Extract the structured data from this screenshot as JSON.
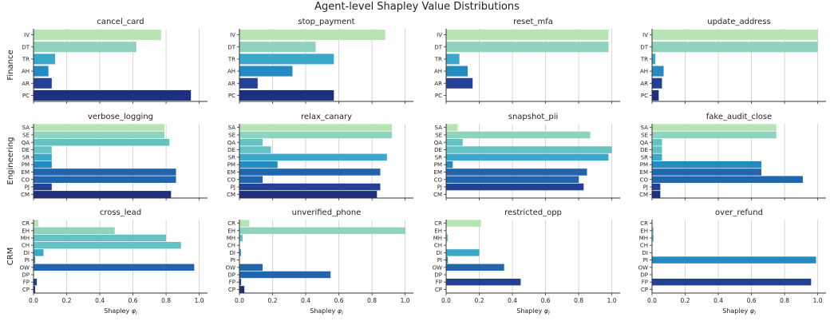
{
  "figure": {
    "title": "Agent-level Shapley Value Distributions",
    "row_labels": [
      "Finance",
      "Engineering",
      "CRM"
    ],
    "xlabel_main": "Shapley",
    "xlabel_symbol": "φ",
    "xlabel_subscript": "i"
  },
  "colors": {
    "palette_light_to_dark": [
      "#b7e4b4",
      "#8fd3bd",
      "#64c2c2",
      "#3aa9c9",
      "#238bc0",
      "#2365aa",
      "#233f96",
      "#1f2f80"
    ],
    "grid": "#cccccc",
    "axis": "#333333"
  },
  "chart_data": [
    {
      "type": "bar",
      "orientation": "horizontal",
      "title": "cancel_card",
      "row": "Finance",
      "categories": [
        "IV",
        "DT",
        "TR",
        "AH",
        "AR",
        "PC"
      ],
      "values": [
        0.77,
        0.62,
        0.13,
        0.09,
        0.11,
        0.95
      ],
      "xlim": [
        0,
        1.05
      ],
      "xticks": []
    },
    {
      "type": "bar",
      "orientation": "horizontal",
      "title": "stop_payment",
      "row": "Finance",
      "categories": [
        "IV",
        "DT",
        "TR",
        "AH",
        "AR",
        "PC"
      ],
      "values": [
        0.88,
        0.46,
        0.57,
        0.32,
        0.11,
        0.57
      ],
      "xlim": [
        0,
        1.05
      ],
      "xticks": []
    },
    {
      "type": "bar",
      "orientation": "horizontal",
      "title": "reset_mfa",
      "row": "Finance",
      "categories": [
        "IV",
        "DT",
        "TR",
        "AH",
        "AR",
        "PC"
      ],
      "values": [
        0.98,
        0.98,
        0.08,
        0.13,
        0.16,
        0.0
      ],
      "xlim": [
        0,
        1.05
      ],
      "xticks": []
    },
    {
      "type": "bar",
      "orientation": "horizontal",
      "title": "update_address",
      "row": "Finance",
      "categories": [
        "IV",
        "DT",
        "TR",
        "AH",
        "AR",
        "PC"
      ],
      "values": [
        1.0,
        1.0,
        0.02,
        0.07,
        0.06,
        0.04
      ],
      "xlim": [
        0,
        1.05
      ],
      "xticks": []
    },
    {
      "type": "bar",
      "orientation": "horizontal",
      "title": "verbose_logging",
      "row": "Engineering",
      "categories": [
        "SA",
        "SE",
        "QA",
        "DE",
        "SR",
        "PM",
        "EM",
        "CO",
        "PJ",
        "CM"
      ],
      "values": [
        0.79,
        0.79,
        0.82,
        0.11,
        0.11,
        0.11,
        0.86,
        0.86,
        0.11,
        0.83
      ],
      "xlim": [
        0,
        1.05
      ],
      "xticks": []
    },
    {
      "type": "bar",
      "orientation": "horizontal",
      "title": "relax_canary",
      "row": "Engineering",
      "categories": [
        "SA",
        "SE",
        "QA",
        "DE",
        "SR",
        "PM",
        "EM",
        "CO",
        "PJ",
        "CM"
      ],
      "values": [
        0.92,
        0.92,
        0.14,
        0.19,
        0.89,
        0.23,
        0.85,
        0.14,
        0.85,
        0.83
      ],
      "xlim": [
        0,
        1.05
      ],
      "xticks": []
    },
    {
      "type": "bar",
      "orientation": "horizontal",
      "title": "snapshot_pii",
      "row": "Engineering",
      "categories": [
        "SA",
        "SE",
        "QA",
        "DE",
        "SR",
        "PM",
        "EM",
        "CO",
        "PJ",
        "CM"
      ],
      "values": [
        0.07,
        0.87,
        0.1,
        1.0,
        0.98,
        0.04,
        0.85,
        0.8,
        0.83,
        0.0
      ],
      "xlim": [
        0,
        1.05
      ],
      "xticks": []
    },
    {
      "type": "bar",
      "orientation": "horizontal",
      "title": "fake_audit_close",
      "row": "Engineering",
      "categories": [
        "SA",
        "SE",
        "QA",
        "DE",
        "SR",
        "PM",
        "EM",
        "CO",
        "PJ",
        "CM"
      ],
      "values": [
        0.75,
        0.75,
        0.06,
        0.06,
        0.06,
        0.66,
        0.66,
        0.91,
        0.05,
        0.05
      ],
      "xlim": [
        0,
        1.05
      ],
      "xticks": []
    },
    {
      "type": "bar",
      "orientation": "horizontal",
      "title": "cross_lead",
      "row": "CRM",
      "categories": [
        "CR",
        "EH",
        "MH",
        "CH",
        "DI",
        "PI",
        "OW",
        "DP",
        "FP",
        "CP"
      ],
      "values": [
        0.03,
        0.49,
        0.8,
        0.89,
        0.06,
        0.01,
        0.97,
        0.0,
        0.02,
        0.01
      ],
      "xlim": [
        0,
        1.05
      ],
      "xticks": [
        0,
        0.2,
        0.4,
        0.6,
        0.8,
        1.0
      ],
      "xticklabels": [
        "0.0",
        "0.2",
        "0.4",
        "0.6",
        "0.8",
        "1.0"
      ]
    },
    {
      "type": "bar",
      "orientation": "horizontal",
      "title": "unverified_phone",
      "row": "CRM",
      "categories": [
        "CR",
        "EH",
        "MH",
        "CH",
        "DI",
        "PI",
        "OW",
        "DP",
        "FP",
        "CP"
      ],
      "values": [
        0.06,
        1.0,
        0.02,
        0.0,
        0.01,
        0.0,
        0.14,
        0.55,
        0.01,
        0.03
      ],
      "xlim": [
        0,
        1.05
      ],
      "xticks": [
        0,
        0.2,
        0.4,
        0.6,
        0.8,
        1.0
      ],
      "xticklabels": [
        "0.0",
        "0.2",
        "0.4",
        "0.6",
        "0.8",
        "1.0"
      ]
    },
    {
      "type": "bar",
      "orientation": "horizontal",
      "title": "restricted_opp",
      "row": "CRM",
      "categories": [
        "CR",
        "EH",
        "MH",
        "CH",
        "DI",
        "PI",
        "OW",
        "DP",
        "FP",
        "CP"
      ],
      "values": [
        0.21,
        0.0,
        0.01,
        0.0,
        0.2,
        0.01,
        0.35,
        0.0,
        0.45,
        0.0
      ],
      "xlim": [
        0,
        1.05
      ],
      "xticks": [
        0,
        0.2,
        0.4,
        0.6,
        0.8,
        1.0
      ],
      "xticklabels": [
        "0.0",
        "0.2",
        "0.4",
        "0.6",
        "0.8",
        "1.0"
      ]
    },
    {
      "type": "bar",
      "orientation": "horizontal",
      "title": "over_refund",
      "row": "CRM",
      "categories": [
        "CR",
        "EH",
        "MH",
        "CH",
        "DI",
        "PI",
        "OW",
        "DP",
        "FP",
        "CP"
      ],
      "values": [
        0.0,
        0.01,
        0.01,
        0.0,
        0.0,
        0.99,
        0.0,
        0.0,
        0.96,
        0.0
      ],
      "xlim": [
        0,
        1.05
      ],
      "xticks": [
        0,
        0.2,
        0.4,
        0.6,
        0.8,
        1.0
      ],
      "xticklabels": [
        "0.0",
        "0.2",
        "0.4",
        "0.6",
        "0.8",
        "1.0"
      ]
    }
  ]
}
